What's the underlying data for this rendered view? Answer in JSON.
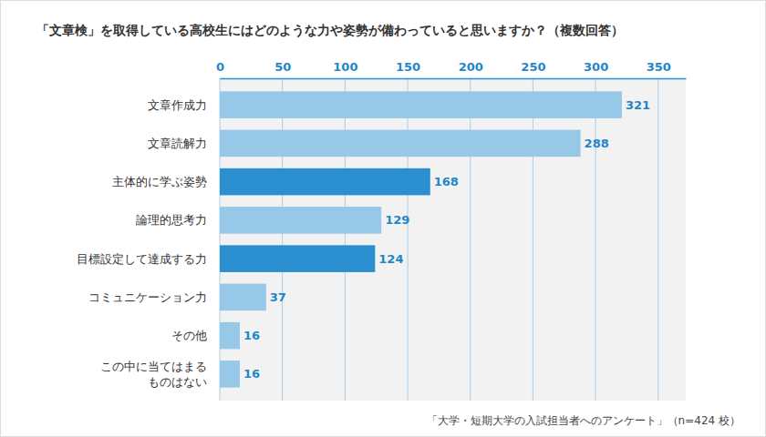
{
  "chart_data": {
    "type": "bar",
    "title": "「文章検」を取得している高校生にはどのような力や姿勢が備わっていると思いますか？（複数回答）",
    "orientation": "horizontal",
    "categories": [
      "文章作成力",
      "文章読解力",
      "主体的に学ぶ姿勢",
      "論理的思考力",
      "目標設定して達成する力",
      "コミュニケーション力",
      "その他",
      "この中に当てはまる\nものはない"
    ],
    "values": [
      321,
      288,
      168,
      129,
      124,
      37,
      16,
      16
    ],
    "colors": [
      "#97c8e8",
      "#97c8e8",
      "#2b8fcf",
      "#97c8e8",
      "#2b8fcf",
      "#97c8e8",
      "#97c8e8",
      "#97c8e8"
    ],
    "xlim": [
      0,
      372
    ],
    "xticks": [
      0,
      50,
      100,
      150,
      200,
      250,
      300,
      350
    ],
    "grid": true,
    "data_labels": true,
    "annotations": [
      "「大学・短期大学の入試担当者へのアンケート」（n=424 校）"
    ]
  }
}
